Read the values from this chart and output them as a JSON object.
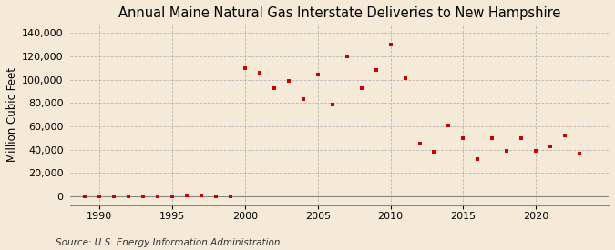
{
  "title": "Annual Maine Natural Gas Interstate Deliveries to New Hampshire",
  "ylabel": "Million Cubic Feet",
  "source": "Source: U.S. Energy Information Administration",
  "background_color": "#f5ead8",
  "marker_color": "#cc0000",
  "years": [
    1989,
    1990,
    1991,
    1992,
    1993,
    1994,
    1995,
    1996,
    1997,
    1998,
    1999,
    2000,
    2001,
    2002,
    2003,
    2004,
    2005,
    2006,
    2007,
    2008,
    2009,
    2010,
    2011,
    2012,
    2013,
    2014,
    2015,
    2016,
    2017,
    2018,
    2019,
    2020,
    2021,
    2022,
    2023
  ],
  "values": [
    100,
    100,
    200,
    100,
    300,
    200,
    400,
    500,
    500,
    400,
    -300,
    110000,
    106000,
    93000,
    99000,
    83000,
    104000,
    79000,
    120000,
    93000,
    108000,
    130000,
    101000,
    45000,
    38000,
    61000,
    50000,
    32000,
    50000,
    39000,
    50000,
    39000,
    43000,
    52000,
    37000
  ],
  "xlim": [
    1988.0,
    2025.0
  ],
  "ylim": [
    -8000,
    148000
  ],
  "yticks": [
    0,
    20000,
    40000,
    60000,
    80000,
    100000,
    120000,
    140000
  ],
  "xticks": [
    1990,
    1995,
    2000,
    2005,
    2010,
    2015,
    2020
  ],
  "grid_color": "#aaaaaa",
  "title_fontsize": 10.5,
  "label_fontsize": 8.5,
  "tick_fontsize": 8,
  "source_fontsize": 7.5
}
